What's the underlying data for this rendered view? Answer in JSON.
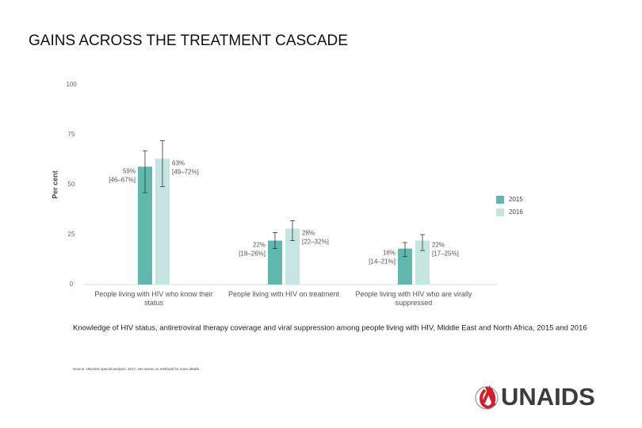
{
  "chart_data": {
    "type": "bar",
    "title": "GAINS ACROSS THE TREATMENT CASCADE",
    "ylabel": "Per cent",
    "categories": [
      "People living with HIV who know their status",
      "People living with HIV on treatment",
      "People living with HIV who are virally suppressed"
    ],
    "series": [
      {
        "name": "2015",
        "color": "#5fb8ab",
        "values": [
          59,
          22,
          18
        ],
        "value_labels": [
          "59%",
          "22%",
          "18%"
        ],
        "lower": [
          46,
          18,
          14
        ],
        "upper": [
          67,
          26,
          21
        ],
        "ci_labels": [
          "[46–67%]",
          "[18–26%]",
          "[14–21%]"
        ]
      },
      {
        "name": "2016",
        "color": "#c4e5e1",
        "values": [
          63,
          28,
          22
        ],
        "value_labels": [
          "63%",
          "28%",
          "22%"
        ],
        "lower": [
          49,
          22,
          17
        ],
        "upper": [
          72,
          32,
          25
        ],
        "ci_labels": [
          "[49–72%]",
          "[22–32%]",
          "[17–25%]"
        ]
      }
    ],
    "ylim": [
      0,
      100
    ],
    "yticks": [
      0,
      25,
      50,
      75,
      100
    ],
    "caption": "Knowledge of HIV status, antiretroviral therapy coverage and viral suppression among people living with HIV, Middle East and North Africa, 2015 and 2016",
    "source": "Source: UNAIDS special analysis, 2017; see annex on methods for more details."
  },
  "logo": "UNAIDS"
}
